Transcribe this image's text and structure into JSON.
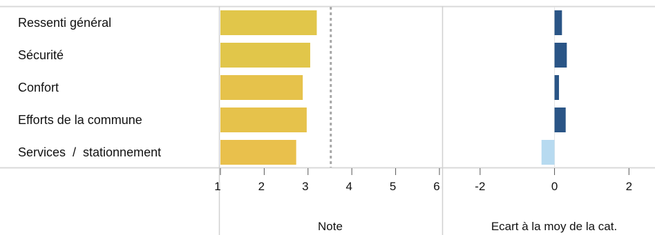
{
  "chart_data": [
    {
      "type": "bar",
      "orientation": "horizontal",
      "categories": [
        "Ressenti général",
        "Sécurité",
        "Confort",
        "Efforts de la commune",
        "Services  /  stationnement"
      ],
      "values": [
        3.2,
        3.05,
        2.88,
        2.97,
        2.73
      ],
      "xlabel": "Note",
      "xlim": [
        1,
        6
      ],
      "ticks": [
        "1",
        "2",
        "3",
        "4",
        "5",
        "6"
      ],
      "reference_line": 3.52,
      "colors": [
        "#e1c64a",
        "#e1c64a",
        "#e6c24b",
        "#e6c24b",
        "#e9c04c"
      ]
    },
    {
      "type": "bar",
      "orientation": "horizontal",
      "categories": [
        "Ressenti général",
        "Sécurité",
        "Confort",
        "Efforts de la commune",
        "Services  /  stationnement"
      ],
      "values": [
        0.2,
        0.33,
        0.12,
        0.3,
        -0.35
      ],
      "xlabel": "Ecart à la moy de la cat.",
      "xlim": [
        -3,
        2.7
      ],
      "ticks": [
        "-2",
        "0",
        "2"
      ],
      "positive_color": "#2a5586",
      "negative_color": "#b7daf0"
    }
  ]
}
